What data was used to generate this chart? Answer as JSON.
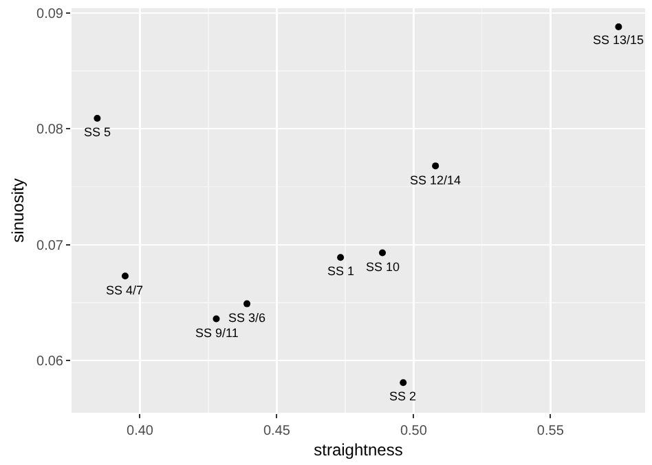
{
  "chart_data": {
    "type": "scatter",
    "xlabel": "straightness",
    "ylabel": "sinuosity",
    "x": [
      0.3844,
      0.3946,
      0.4391,
      0.4279,
      0.4733,
      0.4886,
      0.508,
      0.5749,
      0.4962
    ],
    "values": [
      0.0809,
      0.0673,
      0.0649,
      0.0636,
      0.0689,
      0.0693,
      0.0768,
      0.0888,
      0.0581
    ],
    "color": "#000000",
    "marker": "circle",
    "xlim": [
      0.375,
      0.5846
    ],
    "ylim": [
      0.0555,
      0.0904
    ],
    "xticks": [
      {
        "value": 0.4,
        "label": "0.40"
      },
      {
        "value": 0.45,
        "label": "0.45"
      },
      {
        "value": 0.5,
        "label": "0.50"
      },
      {
        "value": 0.55,
        "label": "0.55"
      }
    ],
    "yticks": [
      0.06,
      0.07,
      0.08,
      0.09
    ],
    "grid": true,
    "annotations": [
      {
        "text": "SS 5",
        "x": 0.3844,
        "y": 0.0809
      },
      {
        "text": "SS 4/7",
        "x": 0.3946,
        "y": 0.0673
      },
      {
        "text": "SS 3/6",
        "x": 0.4391,
        "y": 0.0649
      },
      {
        "text": "SS 9/11",
        "x": 0.4279,
        "y": 0.0636
      },
      {
        "text": "SS 1",
        "x": 0.4733,
        "y": 0.0689
      },
      {
        "text": "SS 10",
        "x": 0.4886,
        "y": 0.0693
      },
      {
        "text": "SS 12/14",
        "x": 0.508,
        "y": 0.0768
      },
      {
        "text": "SS 13/15",
        "x": 0.5749,
        "y": 0.0888
      },
      {
        "text": "SS 2",
        "x": 0.4962,
        "y": 0.0581
      }
    ]
  }
}
